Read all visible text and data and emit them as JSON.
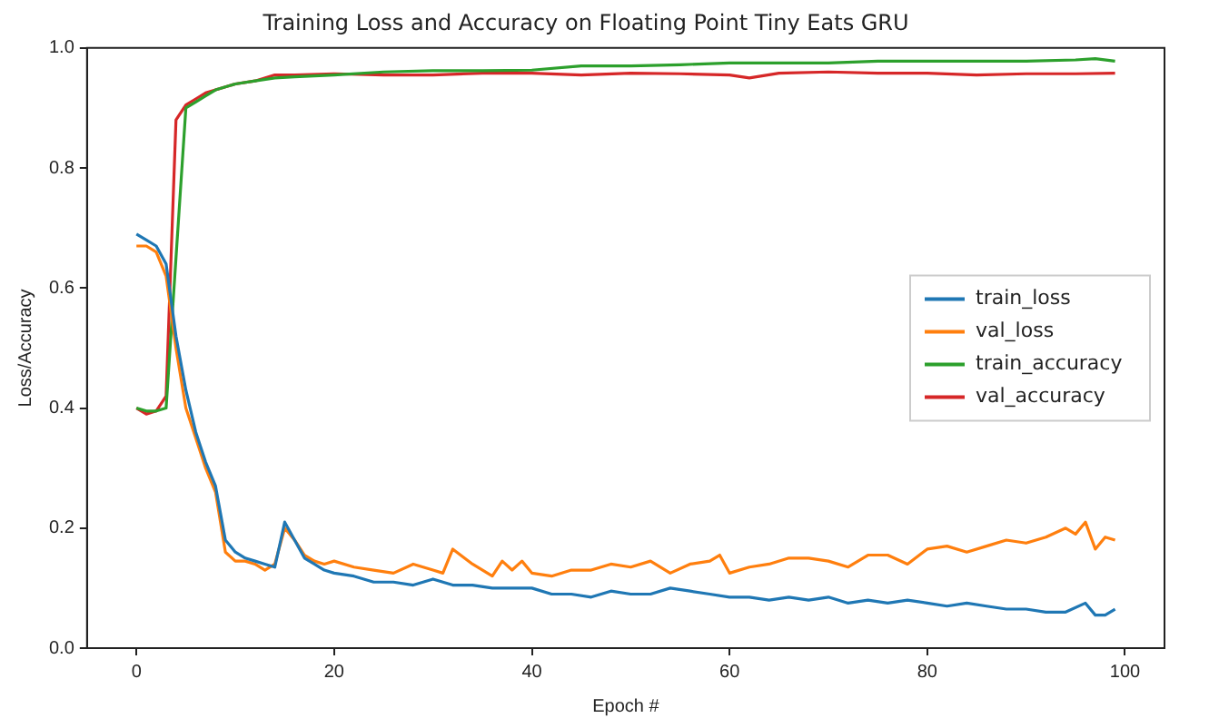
{
  "chart_data": {
    "type": "line",
    "title": "Training Loss and Accuracy on Floating Point Tiny Eats GRU",
    "xlabel": "Epoch #",
    "ylabel": "Loss/Accuracy",
    "xlim": [
      -5,
      104
    ],
    "xticks": [
      0,
      20,
      40,
      60,
      80,
      100
    ],
    "ylim": [
      0,
      1
    ],
    "yticks": [
      {
        "value": 0,
        "label": "0.0"
      },
      {
        "value": 0.2,
        "label": "0.2"
      },
      {
        "value": 0.4,
        "label": "0.4"
      },
      {
        "value": 0.6,
        "label": "0.6"
      },
      {
        "value": 0.8,
        "label": "0.8"
      },
      {
        "value": 1,
        "label": "1.0"
      }
    ],
    "grid": false,
    "legend": "right",
    "marker": "none",
    "line_style": "solid",
    "series": [
      {
        "name": "train_loss",
        "color": "#1f77b4",
        "x": [
          0,
          1,
          2,
          3,
          4,
          5,
          6,
          7,
          8,
          9,
          10,
          11,
          12,
          13,
          14,
          15,
          16,
          17,
          18,
          19,
          20,
          22,
          24,
          26,
          28,
          30,
          32,
          34,
          36,
          38,
          40,
          42,
          44,
          46,
          48,
          50,
          52,
          54,
          56,
          58,
          60,
          62,
          64,
          66,
          68,
          70,
          72,
          74,
          76,
          78,
          80,
          82,
          84,
          86,
          88,
          90,
          92,
          94,
          96,
          97,
          98,
          99
        ],
        "values": [
          0.69,
          0.68,
          0.67,
          0.64,
          0.52,
          0.43,
          0.36,
          0.31,
          0.27,
          0.18,
          0.16,
          0.15,
          0.145,
          0.14,
          0.135,
          0.21,
          0.18,
          0.15,
          0.14,
          0.13,
          0.125,
          0.12,
          0.11,
          0.11,
          0.105,
          0.115,
          0.105,
          0.105,
          0.1,
          0.1,
          0.1,
          0.09,
          0.09,
          0.085,
          0.095,
          0.09,
          0.09,
          0.1,
          0.095,
          0.09,
          0.085,
          0.085,
          0.08,
          0.085,
          0.08,
          0.085,
          0.075,
          0.08,
          0.075,
          0.08,
          0.075,
          0.07,
          0.075,
          0.07,
          0.065,
          0.065,
          0.06,
          0.06,
          0.075,
          0.055,
          0.055,
          0.065
        ]
      },
      {
        "name": "val_loss",
        "color": "#ff7f0e",
        "x": [
          0,
          1,
          2,
          3,
          4,
          5,
          6,
          7,
          8,
          9,
          10,
          11,
          12,
          13,
          14,
          15,
          16,
          17,
          18,
          19,
          20,
          22,
          24,
          26,
          28,
          30,
          31,
          32,
          34,
          36,
          37,
          38,
          39,
          40,
          42,
          44,
          46,
          48,
          50,
          52,
          54,
          56,
          58,
          59,
          60,
          62,
          64,
          66,
          68,
          70,
          72,
          74,
          76,
          78,
          80,
          82,
          84,
          86,
          88,
          90,
          92,
          94,
          95,
          96,
          97,
          98,
          99
        ],
        "values": [
          0.67,
          0.67,
          0.66,
          0.62,
          0.5,
          0.4,
          0.35,
          0.3,
          0.26,
          0.16,
          0.145,
          0.145,
          0.14,
          0.13,
          0.14,
          0.2,
          0.18,
          0.155,
          0.145,
          0.14,
          0.145,
          0.135,
          0.13,
          0.125,
          0.14,
          0.13,
          0.125,
          0.165,
          0.14,
          0.12,
          0.145,
          0.13,
          0.145,
          0.125,
          0.12,
          0.13,
          0.13,
          0.14,
          0.135,
          0.145,
          0.125,
          0.14,
          0.145,
          0.155,
          0.125,
          0.135,
          0.14,
          0.15,
          0.15,
          0.145,
          0.135,
          0.155,
          0.155,
          0.14,
          0.165,
          0.17,
          0.16,
          0.17,
          0.18,
          0.175,
          0.185,
          0.2,
          0.19,
          0.21,
          0.165,
          0.185,
          0.18
        ]
      },
      {
        "name": "train_accuracy",
        "color": "#2ca02c",
        "x": [
          0,
          1,
          2,
          3,
          4,
          5,
          6,
          7,
          8,
          10,
          12,
          14,
          16,
          20,
          25,
          30,
          35,
          40,
          45,
          50,
          55,
          60,
          65,
          70,
          75,
          80,
          85,
          90,
          95,
          97,
          99
        ],
        "values": [
          0.4,
          0.395,
          0.395,
          0.4,
          0.65,
          0.9,
          0.91,
          0.92,
          0.93,
          0.94,
          0.945,
          0.95,
          0.952,
          0.955,
          0.96,
          0.962,
          0.962,
          0.963,
          0.97,
          0.97,
          0.972,
          0.975,
          0.975,
          0.975,
          0.978,
          0.978,
          0.978,
          0.978,
          0.98,
          0.982,
          0.978
        ]
      },
      {
        "name": "val_accuracy",
        "color": "#d62728",
        "x": [
          0,
          1,
          2,
          3,
          4,
          5,
          6,
          7,
          8,
          10,
          12,
          14,
          16,
          20,
          25,
          30,
          35,
          40,
          45,
          50,
          55,
          60,
          62,
          65,
          70,
          75,
          80,
          85,
          90,
          95,
          99
        ],
        "values": [
          0.4,
          0.39,
          0.395,
          0.42,
          0.88,
          0.905,
          0.915,
          0.925,
          0.93,
          0.94,
          0.945,
          0.955,
          0.955,
          0.957,
          0.955,
          0.955,
          0.958,
          0.958,
          0.955,
          0.958,
          0.957,
          0.955,
          0.95,
          0.958,
          0.96,
          0.958,
          0.958,
          0.955,
          0.957,
          0.957,
          0.958
        ]
      }
    ]
  }
}
